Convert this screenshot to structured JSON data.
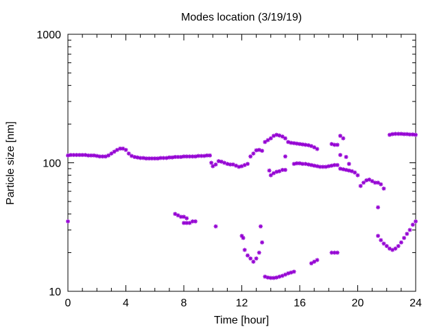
{
  "chart_data": {
    "type": "scatter",
    "title": "Modes location (3/19/19)",
    "xlabel": "Time [hour]",
    "ylabel": "Particle size [nm]",
    "xlim": [
      0,
      24
    ],
    "ylim": [
      10,
      1000
    ],
    "yscale": "log",
    "x_ticks": [
      "0",
      "4",
      "8",
      "12",
      "16",
      "20",
      "24"
    ],
    "y_ticks": [
      "10",
      "100",
      "1000"
    ],
    "grid": false,
    "legend": "none",
    "marker_color": "#9400d3",
    "series": [
      {
        "values": [
          [
            0,
            114
          ],
          [
            0.2,
            115
          ],
          [
            0.4,
            115
          ],
          [
            0.6,
            115
          ],
          [
            0.8,
            115
          ],
          [
            1.0,
            115
          ],
          [
            1.2,
            115
          ],
          [
            1.4,
            114
          ],
          [
            1.6,
            114
          ],
          [
            1.8,
            114
          ],
          [
            2.0,
            113
          ],
          [
            2.2,
            112
          ],
          [
            2.4,
            112
          ],
          [
            2.6,
            112
          ],
          [
            2.8,
            114
          ],
          [
            3.0,
            118
          ],
          [
            3.2,
            122
          ],
          [
            3.4,
            126
          ],
          [
            3.6,
            129
          ],
          [
            3.8,
            129
          ],
          [
            4.0,
            126
          ],
          [
            4.2,
            118
          ],
          [
            4.4,
            113
          ],
          [
            4.6,
            111
          ],
          [
            4.8,
            110
          ],
          [
            5.0,
            109
          ],
          [
            5.2,
            109
          ],
          [
            5.4,
            108
          ],
          [
            5.6,
            108
          ],
          [
            5.8,
            108
          ],
          [
            6.0,
            108
          ],
          [
            6.2,
            108
          ],
          [
            6.4,
            109
          ],
          [
            6.6,
            109
          ],
          [
            6.8,
            109
          ],
          [
            7.0,
            110
          ],
          [
            7.2,
            110
          ],
          [
            7.4,
            111
          ],
          [
            7.6,
            111
          ],
          [
            7.8,
            111
          ],
          [
            8.0,
            112
          ],
          [
            8.2,
            112
          ],
          [
            8.4,
            112
          ],
          [
            8.6,
            112
          ],
          [
            8.8,
            112
          ],
          [
            9.0,
            113
          ],
          [
            9.2,
            113
          ],
          [
            9.4,
            113
          ],
          [
            9.6,
            114
          ],
          [
            9.8,
            114
          ],
          [
            9.9,
            100
          ],
          [
            10.0,
            94
          ],
          [
            10.2,
            97
          ],
          [
            10.4,
            103
          ],
          [
            10.6,
            102
          ],
          [
            10.8,
            100
          ],
          [
            11.0,
            98
          ],
          [
            11.2,
            97
          ],
          [
            11.4,
            97
          ],
          [
            11.6,
            95
          ],
          [
            11.8,
            93
          ],
          [
            12.0,
            94
          ],
          [
            12.2,
            96
          ],
          [
            12.4,
            98
          ],
          [
            12.6,
            112
          ],
          [
            12.8,
            118
          ],
          [
            13.0,
            125
          ],
          [
            13.2,
            126
          ],
          [
            13.4,
            124
          ],
          [
            13.6,
            145
          ],
          [
            13.8,
            150
          ],
          [
            14.0,
            155
          ],
          [
            14.2,
            162
          ],
          [
            14.4,
            165
          ],
          [
            14.6,
            163
          ],
          [
            14.8,
            160
          ],
          [
            15.0,
            155
          ],
          [
            15.2,
            145
          ],
          [
            15.4,
            143
          ],
          [
            15.6,
            142
          ],
          [
            15.8,
            141
          ],
          [
            16.0,
            140
          ],
          [
            16.2,
            139
          ],
          [
            16.4,
            138
          ],
          [
            16.6,
            137
          ],
          [
            16.8,
            135
          ],
          [
            17.0,
            132
          ],
          [
            17.2,
            128
          ],
          [
            14.0,
            80
          ],
          [
            14.2,
            83
          ],
          [
            14.4,
            85
          ],
          [
            14.6,
            86
          ],
          [
            14.8,
            88
          ],
          [
            15.0,
            88
          ],
          [
            13.9,
            87
          ],
          [
            15.0,
            112
          ],
          [
            15.6,
            98
          ],
          [
            15.8,
            99
          ],
          [
            16.0,
            99
          ],
          [
            16.2,
            98
          ],
          [
            16.4,
            98
          ],
          [
            16.6,
            97
          ],
          [
            16.8,
            96
          ],
          [
            17.0,
            95
          ],
          [
            17.2,
            94
          ],
          [
            17.4,
            93
          ],
          [
            17.6,
            93
          ],
          [
            17.8,
            93
          ],
          [
            18.0,
            94
          ],
          [
            18.2,
            95
          ],
          [
            18.4,
            96
          ],
          [
            18.6,
            96
          ],
          [
            18.8,
            90
          ],
          [
            19.0,
            89
          ],
          [
            19.2,
            88
          ],
          [
            19.4,
            87
          ],
          [
            19.6,
            86
          ],
          [
            19.8,
            84
          ],
          [
            20.0,
            80
          ],
          [
            20.2,
            66
          ],
          [
            20.4,
            70
          ],
          [
            20.6,
            73
          ],
          [
            20.8,
            74
          ],
          [
            21.0,
            72
          ],
          [
            21.2,
            70
          ],
          [
            21.4,
            70
          ],
          [
            21.6,
            68
          ],
          [
            21.8,
            63
          ],
          [
            18.2,
            140
          ],
          [
            18.4,
            138
          ],
          [
            18.6,
            138
          ],
          [
            18.8,
            162
          ],
          [
            19.0,
            155
          ],
          [
            18.8,
            115
          ],
          [
            19.2,
            111
          ],
          [
            19.4,
            98
          ],
          [
            22.2,
            165
          ],
          [
            22.4,
            167
          ],
          [
            22.6,
            168
          ],
          [
            22.8,
            168
          ],
          [
            23.0,
            168
          ],
          [
            23.2,
            167
          ],
          [
            23.4,
            167
          ],
          [
            23.6,
            166
          ],
          [
            23.8,
            166
          ],
          [
            24.0,
            165
          ]
        ]
      },
      {
        "values": [
          [
            0,
            35
          ],
          [
            7.4,
            40
          ],
          [
            7.6,
            39
          ],
          [
            7.8,
            38
          ],
          [
            8.0,
            38
          ],
          [
            8.2,
            37
          ],
          [
            8.0,
            34
          ],
          [
            8.2,
            34
          ],
          [
            8.4,
            34
          ],
          [
            8.6,
            35
          ],
          [
            8.8,
            35
          ],
          [
            10.2,
            32
          ],
          [
            12.0,
            27
          ],
          [
            12.1,
            26
          ],
          [
            12.2,
            21
          ],
          [
            12.4,
            19
          ],
          [
            12.6,
            18
          ],
          [
            12.8,
            17
          ],
          [
            13.0,
            18
          ],
          [
            13.2,
            20
          ],
          [
            13.4,
            24
          ],
          [
            13.3,
            32
          ],
          [
            13.6,
            13
          ],
          [
            13.8,
            12.8
          ],
          [
            14.0,
            12.7
          ],
          [
            14.2,
            12.7
          ],
          [
            14.4,
            12.8
          ],
          [
            14.6,
            13
          ],
          [
            14.8,
            13.2
          ],
          [
            15.0,
            13.5
          ],
          [
            15.2,
            13.8
          ],
          [
            15.4,
            14
          ],
          [
            15.6,
            14.2
          ],
          [
            16.8,
            16.5
          ],
          [
            17.0,
            17
          ],
          [
            17.2,
            17.5
          ],
          [
            18.2,
            20
          ],
          [
            18.4,
            20
          ],
          [
            18.6,
            20
          ],
          [
            21.4,
            45
          ],
          [
            21.4,
            27
          ],
          [
            21.6,
            25
          ],
          [
            21.8,
            23.5
          ],
          [
            22.0,
            22.5
          ],
          [
            22.2,
            21.5
          ],
          [
            22.4,
            21
          ],
          [
            22.6,
            21.5
          ],
          [
            22.8,
            22.5
          ],
          [
            23.0,
            24
          ],
          [
            23.2,
            26
          ],
          [
            23.4,
            28
          ],
          [
            23.6,
            30
          ],
          [
            23.8,
            33
          ],
          [
            24.0,
            35
          ]
        ]
      }
    ]
  }
}
